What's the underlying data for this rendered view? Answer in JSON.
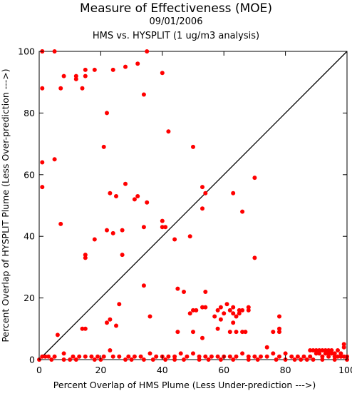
{
  "chart_data": {
    "type": "scatter",
    "title": "Measure of Effectiveness (MOE)",
    "subtitle_date": "09/01/2006",
    "subtitle_analysis": "HMS vs. HYSPLIT  (1 ug/m3 analysis)",
    "xlabel": "Percent Overlap of HMS Plume (Less Under-prediction --->)",
    "ylabel": "Percent Overlap of HYSPLIT Plume (Less Over-prediction --->)",
    "xlim": [
      0,
      100
    ],
    "ylim": [
      0,
      100
    ],
    "xticks": [
      "0",
      "20",
      "40",
      "60",
      "80",
      "100"
    ],
    "yticks": [
      "0",
      "20",
      "40",
      "60",
      "80",
      "100"
    ],
    "grid": false,
    "reference_line": "diagonal y = x",
    "point_color": "#ff0000",
    "line_color": "#000000",
    "points": [
      [
        1,
        100
      ],
      [
        1,
        100
      ],
      [
        5,
        100
      ],
      [
        35,
        100
      ],
      [
        32,
        96
      ],
      [
        28,
        95
      ],
      [
        24,
        94
      ],
      [
        15,
        94
      ],
      [
        18,
        94
      ],
      [
        40,
        93
      ],
      [
        12,
        92
      ],
      [
        8,
        92
      ],
      [
        15,
        92
      ],
      [
        12,
        91
      ],
      [
        1,
        88
      ],
      [
        7,
        88
      ],
      [
        14,
        88
      ],
      [
        34,
        86
      ],
      [
        22,
        80
      ],
      [
        42,
        74
      ],
      [
        50,
        69
      ],
      [
        21,
        69
      ],
      [
        5,
        65
      ],
      [
        1,
        64
      ],
      [
        70,
        59
      ],
      [
        28,
        57
      ],
      [
        1,
        56
      ],
      [
        53,
        56
      ],
      [
        25,
        53
      ],
      [
        32,
        53
      ],
      [
        31,
        52
      ],
      [
        23,
        54
      ],
      [
        53,
        49
      ],
      [
        54,
        54
      ],
      [
        63,
        54
      ],
      [
        35,
        51
      ],
      [
        66,
        48
      ],
      [
        40,
        45
      ],
      [
        7,
        44
      ],
      [
        40,
        43
      ],
      [
        34,
        43
      ],
      [
        22,
        42
      ],
      [
        24,
        41
      ],
      [
        27,
        42
      ],
      [
        41,
        43
      ],
      [
        49,
        40
      ],
      [
        44,
        39
      ],
      [
        18,
        39
      ],
      [
        15,
        34
      ],
      [
        15,
        33
      ],
      [
        27,
        34
      ],
      [
        70,
        33
      ],
      [
        34,
        24
      ],
      [
        45,
        23
      ],
      [
        47,
        22
      ],
      [
        54,
        22
      ],
      [
        59,
        17
      ],
      [
        61,
        18
      ],
      [
        58,
        16
      ],
      [
        60,
        15
      ],
      [
        62,
        16
      ],
      [
        63,
        17
      ],
      [
        63,
        15
      ],
      [
        64,
        14
      ],
      [
        65,
        15
      ],
      [
        65,
        16
      ],
      [
        66,
        16
      ],
      [
        68,
        17
      ],
      [
        68,
        16
      ],
      [
        53,
        17
      ],
      [
        54,
        17
      ],
      [
        51,
        16
      ],
      [
        50,
        16
      ],
      [
        49,
        15
      ],
      [
        36,
        14
      ],
      [
        57,
        14
      ],
      [
        26,
        18
      ],
      [
        22,
        12
      ],
      [
        23,
        13
      ],
      [
        25,
        11
      ],
      [
        78,
        14
      ],
      [
        78,
        10
      ],
      [
        78,
        9
      ],
      [
        76,
        9
      ],
      [
        74,
        4
      ],
      [
        58,
        10
      ],
      [
        59,
        13
      ],
      [
        63,
        12
      ],
      [
        62,
        9
      ],
      [
        64,
        9
      ],
      [
        66,
        9
      ],
      [
        67,
        9
      ],
      [
        45,
        9
      ],
      [
        50,
        9
      ],
      [
        53,
        7
      ],
      [
        14,
        10
      ],
      [
        15,
        10
      ],
      [
        6,
        8
      ],
      [
        99,
        5
      ],
      [
        99,
        4
      ],
      [
        1,
        1
      ],
      [
        2,
        1
      ],
      [
        3,
        1
      ],
      [
        5,
        1
      ],
      [
        8,
        2
      ],
      [
        11,
        1
      ],
      [
        13,
        1
      ],
      [
        15,
        1
      ],
      [
        17,
        1
      ],
      [
        19,
        1
      ],
      [
        21,
        1
      ],
      [
        23,
        3
      ],
      [
        24,
        1
      ],
      [
        26,
        1
      ],
      [
        29,
        1
      ],
      [
        31,
        1
      ],
      [
        33,
        1
      ],
      [
        36,
        2
      ],
      [
        38,
        1
      ],
      [
        40,
        1
      ],
      [
        42,
        1
      ],
      [
        44,
        1
      ],
      [
        46,
        2
      ],
      [
        48,
        1
      ],
      [
        50,
        2
      ],
      [
        52,
        1
      ],
      [
        54,
        1
      ],
      [
        56,
        1
      ],
      [
        58,
        1
      ],
      [
        60,
        1
      ],
      [
        62,
        1
      ],
      [
        64,
        1
      ],
      [
        66,
        2
      ],
      [
        68,
        1
      ],
      [
        70,
        1
      ],
      [
        72,
        1
      ],
      [
        74,
        1
      ],
      [
        76,
        2
      ],
      [
        78,
        1
      ],
      [
        80,
        2
      ],
      [
        82,
        1
      ],
      [
        84,
        1
      ],
      [
        86,
        1
      ],
      [
        88,
        1
      ],
      [
        88,
        3
      ],
      [
        89,
        3
      ],
      [
        90,
        2
      ],
      [
        90,
        3
      ],
      [
        91,
        2
      ],
      [
        91,
        3
      ],
      [
        92,
        1
      ],
      [
        92,
        3
      ],
      [
        93,
        2
      ],
      [
        93,
        3
      ],
      [
        94,
        1
      ],
      [
        94,
        2
      ],
      [
        94,
        3
      ],
      [
        95,
        2
      ],
      [
        95,
        3
      ],
      [
        96,
        1
      ],
      [
        96,
        2
      ],
      [
        97,
        1
      ],
      [
        97,
        3
      ],
      [
        98,
        1
      ],
      [
        98,
        2
      ],
      [
        99,
        1
      ],
      [
        100,
        1
      ],
      [
        8,
        0
      ],
      [
        12,
        0
      ],
      [
        20,
        0
      ],
      [
        28,
        0
      ],
      [
        34,
        0
      ],
      [
        41,
        0
      ],
      [
        47,
        0
      ],
      [
        55,
        0
      ],
      [
        63,
        0
      ],
      [
        71,
        0
      ],
      [
        80,
        0
      ],
      [
        85,
        0
      ],
      [
        87,
        0
      ],
      [
        100,
        0
      ],
      [
        96,
        0
      ],
      [
        92,
        0
      ],
      [
        89,
        0
      ],
      [
        83,
        0
      ],
      [
        77,
        0
      ],
      [
        68,
        0
      ],
      [
        59,
        0
      ],
      [
        52,
        0
      ],
      [
        44,
        0
      ],
      [
        37,
        0
      ],
      [
        30,
        0
      ],
      [
        18,
        0
      ],
      [
        10,
        0
      ],
      [
        4,
        0
      ],
      [
        0,
        0
      ]
    ]
  }
}
